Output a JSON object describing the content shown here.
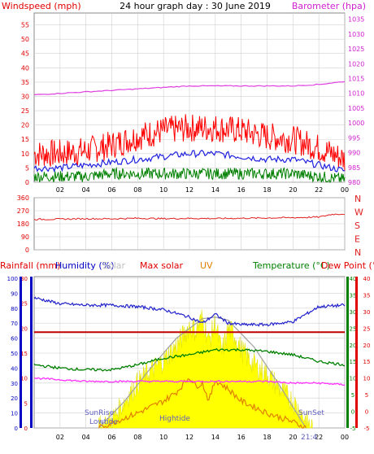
{
  "colors": {
    "wind_axis": "#e00000",
    "baro_axis": "#d020d0",
    "title": "#000000",
    "grid": "#d0d0d0",
    "gust": "#ff0000",
    "avg_wind": "#2020e0",
    "min_wind": "#008000",
    "baro": "#e040e0",
    "dir": "#e02020",
    "rain_axis": "#0000c0",
    "humidity": "#2222cc",
    "solar": "#ffff00",
    "solar_edge": "#e0e000",
    "max_solar": "#a0a0a0",
    "uv": "#e08000",
    "temp": "#008000",
    "dew": "#ff30ff",
    "temp_axis": "#008000",
    "dew_axis": "#e00000",
    "rain_line": "#c00000",
    "sun_label": "#6060c0"
  },
  "chart_data": [
    {
      "type": "line",
      "id": "wind_baro",
      "title": "24 hour graph day : 30 June 2019",
      "ylabel_left": "Windspeed (mph)",
      "ylabel_right": "Barometer (hpa)",
      "x_ticks": [
        "02",
        "04",
        "06",
        "08",
        "10",
        "12",
        "14",
        "16",
        "18",
        "20",
        "22",
        "00"
      ],
      "ylim_left": [
        0,
        58
      ],
      "yticks_left": [
        "0",
        "5",
        "10",
        "15",
        "20",
        "25",
        "30",
        "35",
        "40",
        "45",
        "50",
        "55"
      ],
      "ylim_right": [
        980,
        1036
      ],
      "yticks_right": [
        "980",
        "985",
        "990",
        "995",
        "1000",
        "1005",
        "1010",
        "1015",
        "1020",
        "1025",
        "1030",
        "1035"
      ],
      "grid": true,
      "series": [
        {
          "key": "gust",
          "axis": "left",
          "x": [
            0,
            2,
            4,
            6,
            8,
            10,
            12,
            14,
            16,
            18,
            20,
            22,
            24
          ],
          "values": [
            10,
            10,
            11,
            13,
            16,
            18,
            19,
            19,
            18,
            16,
            15,
            12,
            8
          ]
        },
        {
          "key": "avg",
          "axis": "left",
          "x": [
            0,
            2,
            4,
            6,
            8,
            10,
            12,
            14,
            16,
            18,
            20,
            22,
            24
          ],
          "values": [
            5,
            5,
            6,
            7,
            8,
            9,
            10,
            10,
            9,
            8,
            8,
            6,
            4
          ]
        },
        {
          "key": "min",
          "axis": "left",
          "x": [
            0,
            2,
            4,
            6,
            8,
            10,
            12,
            14,
            16,
            18,
            20,
            22,
            24
          ],
          "values": [
            2,
            2,
            2,
            3,
            3,
            3,
            3,
            3,
            3,
            3,
            3,
            2,
            1
          ]
        },
        {
          "key": "baro",
          "axis": "right",
          "x": [
            0,
            2,
            4,
            6,
            8,
            10,
            12,
            14,
            16,
            18,
            20,
            22,
            24
          ],
          "values": [
            1009.5,
            1010,
            1010.5,
            1011,
            1011.5,
            1012,
            1012.5,
            1012.5,
            1012.5,
            1012.5,
            1012.5,
            1013,
            1014
          ]
        }
      ]
    },
    {
      "type": "line",
      "id": "direction",
      "ylim": [
        0,
        360
      ],
      "yticks": [
        "0",
        "90",
        "180",
        "270",
        "360"
      ],
      "compass": [
        "N",
        "W",
        "S",
        "E",
        "N"
      ],
      "grid": true,
      "series": [
        {
          "key": "dir",
          "x": [
            0,
            2,
            4,
            6,
            8,
            10,
            12,
            14,
            16,
            18,
            20,
            22,
            23,
            24
          ],
          "values": [
            210,
            212,
            215,
            214,
            218,
            215,
            217,
            216,
            218,
            220,
            222,
            226,
            245,
            248
          ]
        }
      ]
    },
    {
      "type": "line",
      "id": "solar_temp",
      "legend": [
        "Rainfall (mm)",
        "Humidity (%)",
        "Solar",
        "Max solar",
        "UV",
        "Temperature (°C)",
        "Dew Point (°C)"
      ],
      "rain_yticks": [
        "0",
        "5",
        "10",
        "15",
        "20",
        "25",
        "30"
      ],
      "humidity_yticks": [
        "0",
        "10",
        "20",
        "30",
        "40",
        "50",
        "60",
        "70",
        "80",
        "90",
        "100"
      ],
      "temp_ylim": [
        -5,
        40
      ],
      "temp_yticks": [
        "-5",
        "0",
        "5",
        "10",
        "15",
        "20",
        "25",
        "30",
        "35",
        "40"
      ],
      "sun_labels": {
        "sunrise": "SunRise",
        "lowtide": "Lowtide",
        "hightide": "Hightide",
        "sunset": "SunSet",
        "sunset_time": "21:4"
      },
      "series": [
        {
          "key": "humidity",
          "axis": "humidity",
          "x": [
            0,
            1,
            2,
            4,
            6,
            8,
            10,
            12,
            13,
            14,
            15,
            16,
            18,
            20,
            22,
            24
          ],
          "values": [
            87,
            85,
            83,
            82,
            82,
            81,
            79,
            74,
            70,
            76,
            70,
            69,
            69,
            71,
            81,
            82
          ]
        },
        {
          "key": "max_solar",
          "axis": "humidity",
          "x": [
            5,
            7,
            9,
            11,
            13,
            14,
            15,
            17,
            19,
            21
          ],
          "values": [
            0,
            18,
            40,
            60,
            73,
            74,
            72,
            54,
            28,
            0
          ]
        },
        {
          "key": "solar",
          "axis": "humidity",
          "x": [
            5,
            6,
            7,
            8,
            9,
            10,
            11,
            12,
            12.5,
            13,
            13.5,
            14,
            14.5,
            15,
            15.5,
            16,
            17,
            18,
            19,
            20,
            21,
            21.5
          ],
          "values": [
            0,
            5,
            18,
            30,
            38,
            45,
            55,
            68,
            65,
            74,
            58,
            70,
            50,
            66,
            62,
            52,
            42,
            36,
            26,
            18,
            5,
            0
          ]
        },
        {
          "key": "uv",
          "axis": "humidity",
          "x": [
            5,
            8,
            10,
            11,
            12,
            12.5,
            13,
            13.5,
            14,
            15,
            16,
            18,
            20,
            21
          ],
          "values": [
            0,
            10,
            18,
            24,
            34,
            28,
            30,
            18,
            32,
            26,
            18,
            10,
            4,
            0
          ]
        },
        {
          "key": "temp",
          "axis": "temp",
          "x": [
            0,
            2,
            4,
            6,
            8,
            10,
            12,
            14,
            16,
            18,
            20,
            22,
            24
          ],
          "values": [
            14,
            13,
            12.5,
            12.5,
            14,
            16,
            17,
            18.5,
            18.5,
            18,
            17,
            15,
            14
          ]
        },
        {
          "key": "dew",
          "axis": "temp",
          "x": [
            0,
            2,
            4,
            6,
            8,
            10,
            12,
            14,
            16,
            18,
            20,
            22,
            24
          ],
          "values": [
            10,
            9.5,
            9,
            9,
            9,
            9,
            9,
            9,
            9,
            9,
            8.5,
            8.5,
            8
          ]
        },
        {
          "key": "rain",
          "axis": "humidity",
          "x": [
            0,
            24
          ],
          "values": [
            64,
            64
          ]
        }
      ]
    }
  ]
}
